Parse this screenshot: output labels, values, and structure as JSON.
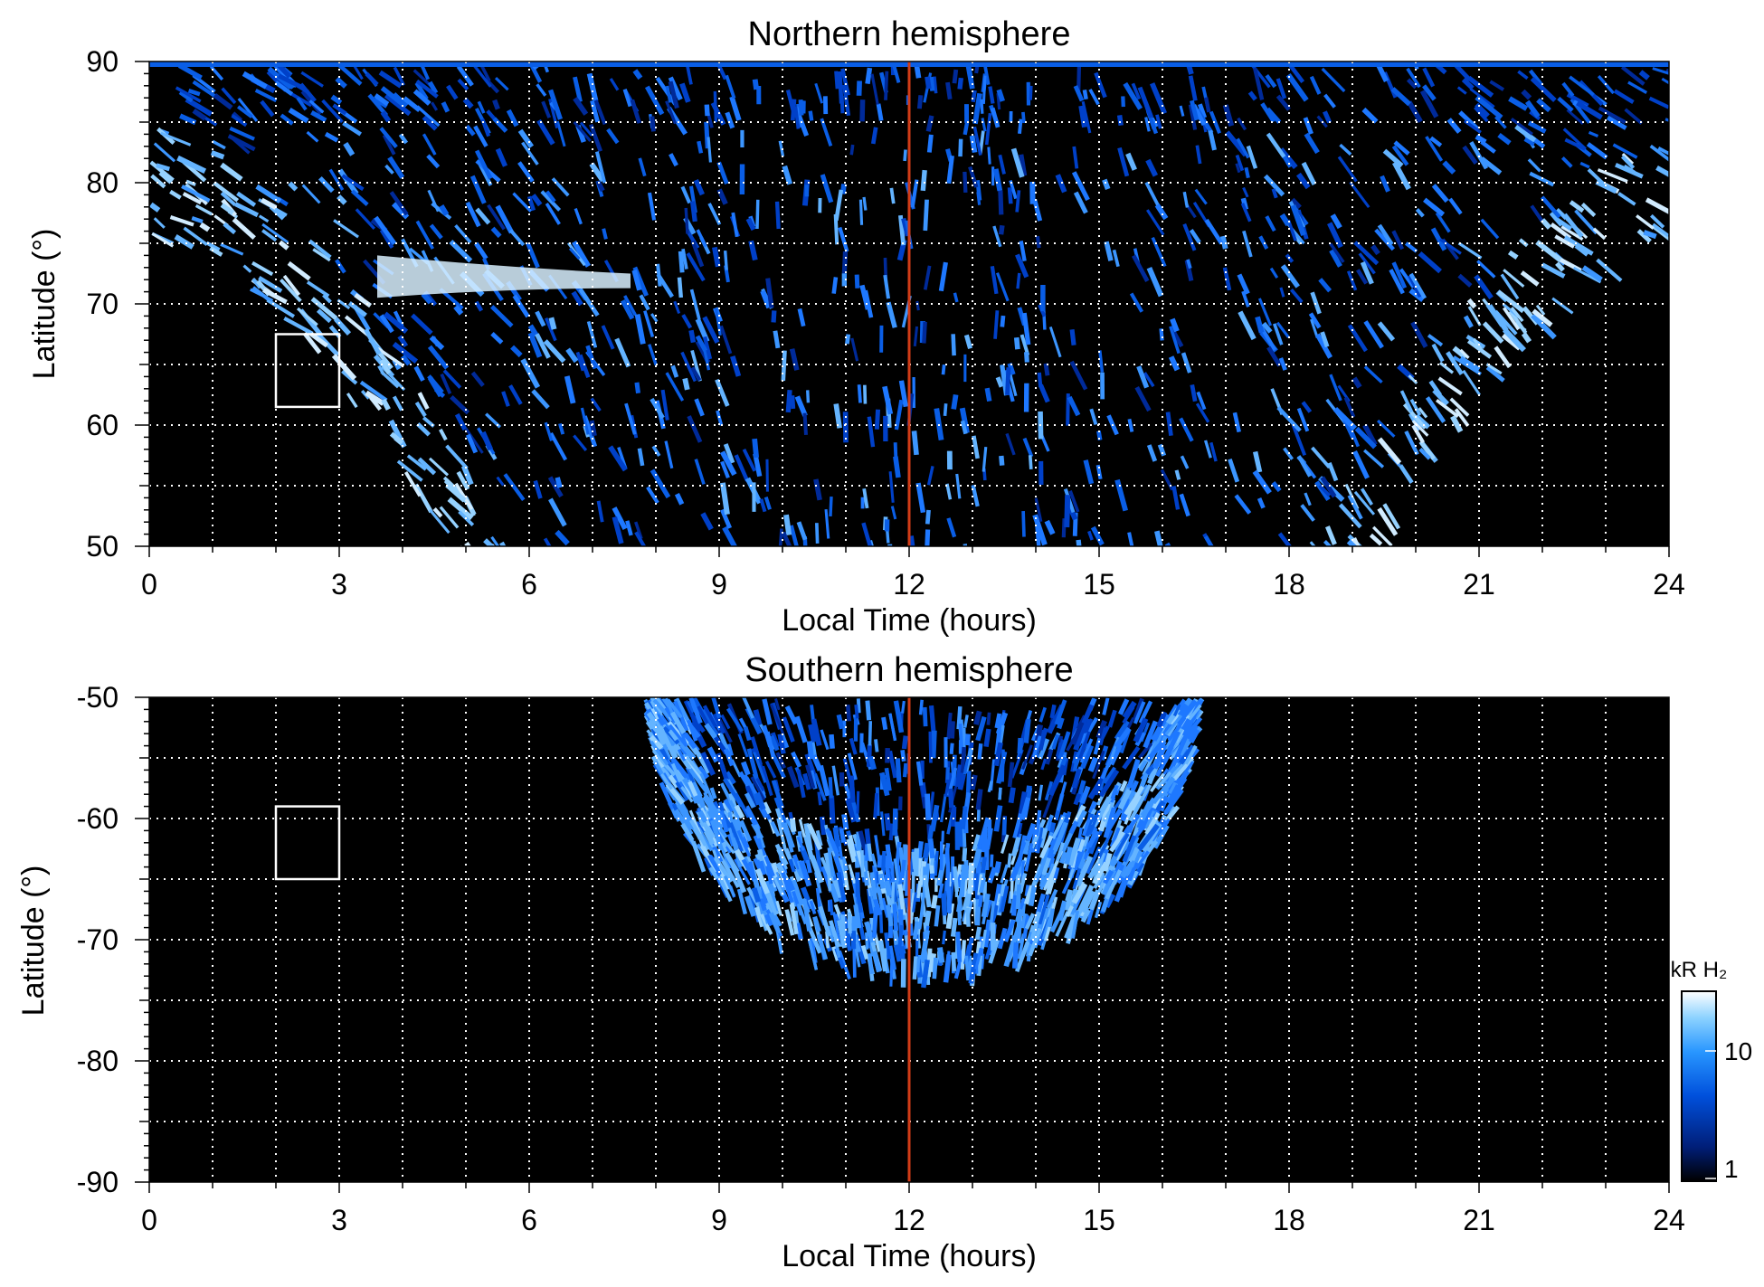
{
  "chart_data": [
    {
      "type": "heatmap",
      "title": "Northern hemisphere",
      "xlabel": "Local Time (hours)",
      "ylabel": "Latitude (°)",
      "xlim": [
        0,
        24
      ],
      "ylim": [
        50,
        90
      ],
      "x_ticks": [
        0,
        3,
        6,
        9,
        12,
        15,
        18,
        21,
        24
      ],
      "y_ticks": [
        50,
        60,
        70,
        80,
        90
      ],
      "grid": true,
      "reference_line": {
        "x": 12,
        "color": "#d23c17"
      },
      "box": {
        "x": [
          2,
          3
        ],
        "y": [
          61.5,
          67.5
        ]
      },
      "auroral_oval": {
        "outer_lat_at_midnight": 75.5,
        "outer_lat_at_noon_edge": 49.5,
        "dawn_equatorward_lt": 4.8,
        "dusk_equatorward_lt": 19.4,
        "bright_arc": {
          "lt": [
            3.6,
            7.6
          ],
          "lat": 72.5
        }
      }
    },
    {
      "type": "heatmap",
      "title": "Southern hemisphere",
      "xlabel": "Local Time (hours)",
      "ylabel": "Latitude (°)",
      "xlim": [
        0,
        24
      ],
      "ylim": [
        -90,
        -50
      ],
      "x_ticks": [
        0,
        3,
        6,
        9,
        12,
        15,
        18,
        21,
        24
      ],
      "y_ticks": [
        -50,
        -60,
        -70,
        -80,
        -90
      ],
      "grid": true,
      "reference_line": {
        "x": 12,
        "color": "#d23c17"
      },
      "box": {
        "x": [
          2,
          3
        ],
        "y": [
          -65,
          -59
        ]
      },
      "auroral_oval": {
        "coverage_lt": [
          7.8,
          16.6
        ],
        "equatorward_lat": -72,
        "poleward_inner_lat": -61.5
      },
      "colorbar": {
        "label": "kR H₂",
        "scale": "log",
        "range": [
          1,
          30
        ],
        "ticks": [
          "1",
          "10"
        ],
        "colors": [
          "#000000",
          "#001e78",
          "#0050dc",
          "#2896ff",
          "#8cd2ff",
          "#ffffff"
        ]
      }
    }
  ]
}
